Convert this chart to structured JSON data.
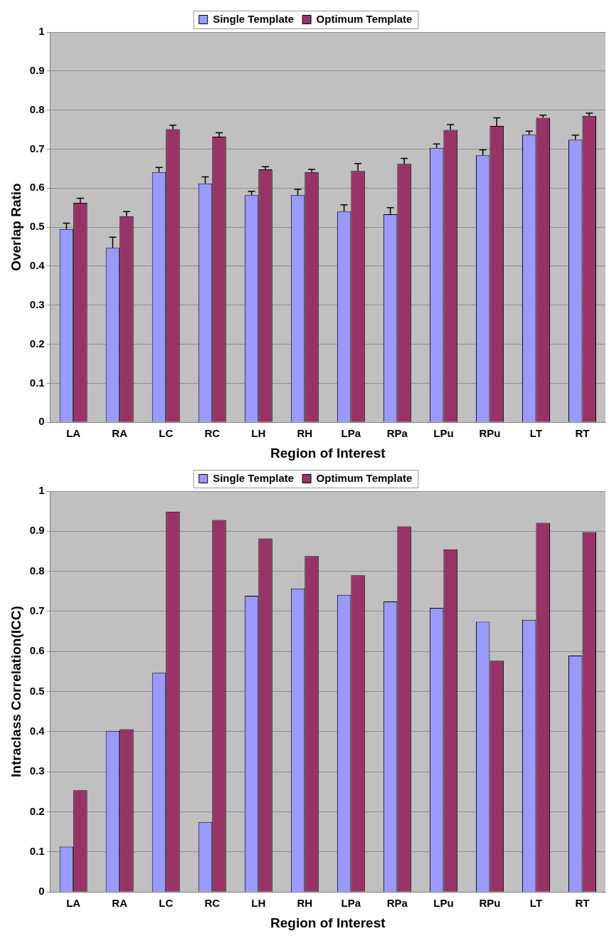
{
  "chart_data": [
    {
      "type": "bar",
      "xlabel": "Region of Interest",
      "ylabel": "Overlap Ratio",
      "categories": [
        "LA",
        "RA",
        "LC",
        "RC",
        "LH",
        "RH",
        "LPa",
        "RPa",
        "LPu",
        "RPu",
        "LT",
        "RT"
      ],
      "series": [
        {
          "name": "Single Template",
          "color": "#9999ff",
          "values": [
            0.495,
            0.447,
            0.641,
            0.612,
            0.582,
            0.582,
            0.54,
            0.533,
            0.703,
            0.684,
            0.737,
            0.724
          ],
          "errors": [
            [
              0.495,
              0.51
            ],
            [
              0.447,
              0.474
            ],
            [
              0.641,
              0.653
            ],
            [
              0.612,
              0.629
            ],
            [
              0.582,
              0.592
            ],
            [
              0.582,
              0.597
            ],
            [
              0.54,
              0.557
            ],
            [
              0.533,
              0.55
            ],
            [
              0.703,
              0.713
            ],
            [
              0.684,
              0.698
            ],
            [
              0.737,
              0.746
            ],
            [
              0.724,
              0.736
            ]
          ]
        },
        {
          "name": "Optimum Template",
          "color": "#993366",
          "values": [
            0.562,
            0.528,
            0.751,
            0.732,
            0.648,
            0.641,
            0.644,
            0.662,
            0.749,
            0.759,
            0.78,
            0.785
          ],
          "errors": [
            [
              0.562,
              0.574
            ],
            [
              0.528,
              0.54
            ],
            [
              0.751,
              0.761
            ],
            [
              0.732,
              0.742
            ],
            [
              0.648,
              0.655
            ],
            [
              0.641,
              0.648
            ],
            [
              0.644,
              0.663
            ],
            [
              0.662,
              0.676
            ],
            [
              0.749,
              0.763
            ],
            [
              0.759,
              0.78
            ],
            [
              0.78,
              0.787
            ],
            [
              0.785,
              0.792
            ]
          ]
        }
      ],
      "ylim": [
        0,
        1
      ],
      "yticks": [
        0,
        0.1,
        0.2,
        0.3,
        0.4,
        0.5,
        0.6,
        0.7,
        0.8,
        0.9,
        1
      ],
      "grid": "y",
      "legend": "top"
    },
    {
      "type": "bar",
      "xlabel": "Region of Interest",
      "ylabel": "Intraclass Correlation(ICC)",
      "categories": [
        "LA",
        "RA",
        "LC",
        "RC",
        "LH",
        "RH",
        "LPa",
        "RPa",
        "LPu",
        "RPu",
        "LT",
        "RT"
      ],
      "series": [
        {
          "name": "Single Template",
          "color": "#9999ff",
          "values": [
            0.113,
            0.402,
            0.547,
            0.175,
            0.739,
            0.757,
            0.741,
            0.725,
            0.709,
            0.674,
            0.679,
            0.59
          ]
        },
        {
          "name": "Optimum Template",
          "color": "#993366",
          "values": [
            0.254,
            0.406,
            0.949,
            0.928,
            0.882,
            0.838,
            0.79,
            0.912,
            0.855,
            0.577,
            0.921,
            0.898
          ]
        }
      ],
      "ylim": [
        0,
        1
      ],
      "yticks": [
        0,
        0.1,
        0.2,
        0.3,
        0.4,
        0.5,
        0.6,
        0.7,
        0.8,
        0.9,
        1
      ],
      "grid": "y",
      "legend": "top"
    }
  ]
}
